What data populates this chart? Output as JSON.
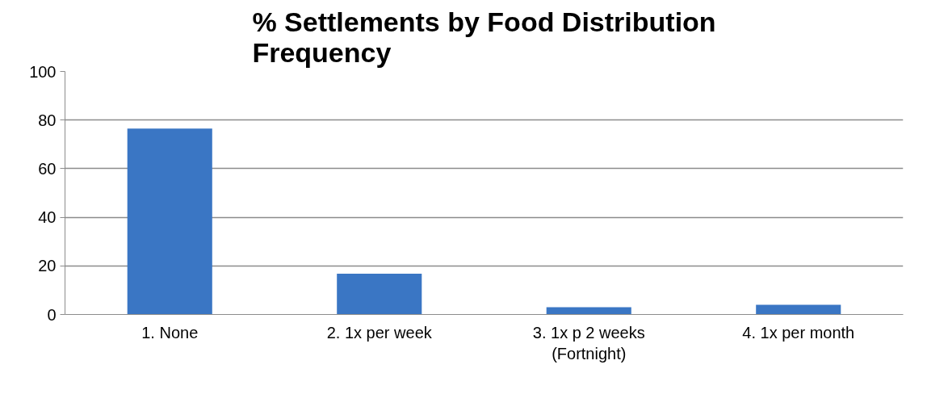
{
  "chart_data": {
    "type": "bar",
    "title": "% Settlements by Food Distribution Frequency",
    "categories": [
      "1. None",
      "2. 1x per week",
      "3. 1x p 2 weeks (Fortnight)",
      "4. 1x per month"
    ],
    "values": [
      76.5,
      16.8,
      3.0,
      4.0
    ],
    "color": "#3a76c4",
    "ylim": [
      0,
      100
    ],
    "yticks": [
      0,
      20,
      40,
      60,
      80,
      100
    ],
    "grid": "y"
  }
}
